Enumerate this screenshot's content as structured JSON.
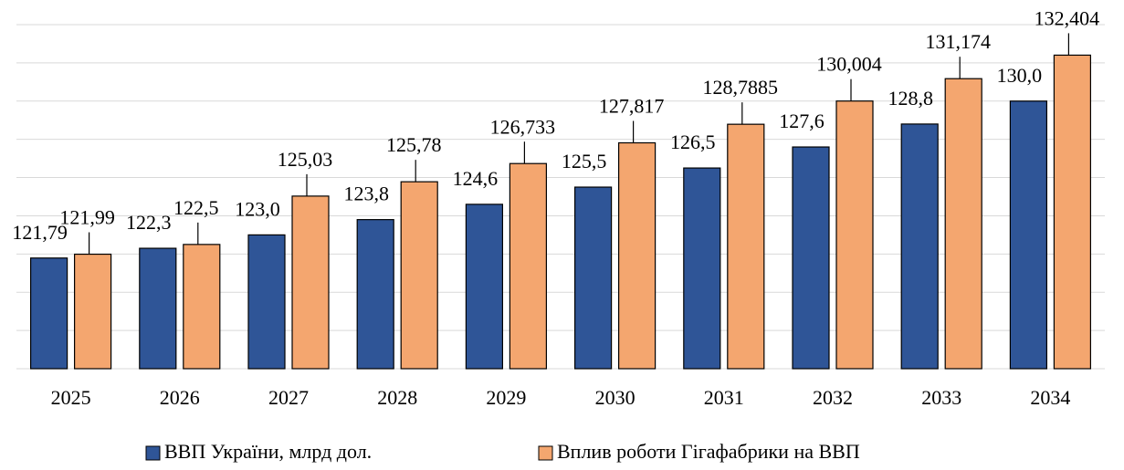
{
  "chart_data": {
    "type": "bar",
    "categories": [
      "2025",
      "2026",
      "2027",
      "2028",
      "2029",
      "2030",
      "2031",
      "2032",
      "2033",
      "2034"
    ],
    "series": [
      {
        "name": "ВВП України, млрд дол.",
        "color": "#2f5597",
        "values": [
          121.79,
          122.3,
          123.0,
          123.8,
          124.6,
          125.5,
          126.5,
          127.6,
          128.8,
          130.0
        ],
        "value_labels": [
          "121,79",
          "122,3",
          "123,0",
          "123,8",
          "124,6",
          "125,5",
          "126,5",
          "127,6",
          "128,8",
          "130,0"
        ]
      },
      {
        "name": "Вплив роботи Гігафабрики на ВВП",
        "color": "#f4a66f",
        "values": [
          121.99,
          122.5,
          125.03,
          125.78,
          126.733,
          127.817,
          128.7885,
          130.004,
          131.174,
          132.404
        ],
        "value_labels": [
          "121,99",
          "122,5",
          "125,03",
          "125,78",
          "126,733",
          "127,817",
          "128,7885",
          "130,004",
          "131,174",
          "132,404"
        ]
      }
    ],
    "ylim": [
      116,
      134
    ],
    "yticks": [
      116,
      118,
      120,
      122,
      124,
      126,
      128,
      130,
      132,
      134
    ],
    "grid": true
  }
}
